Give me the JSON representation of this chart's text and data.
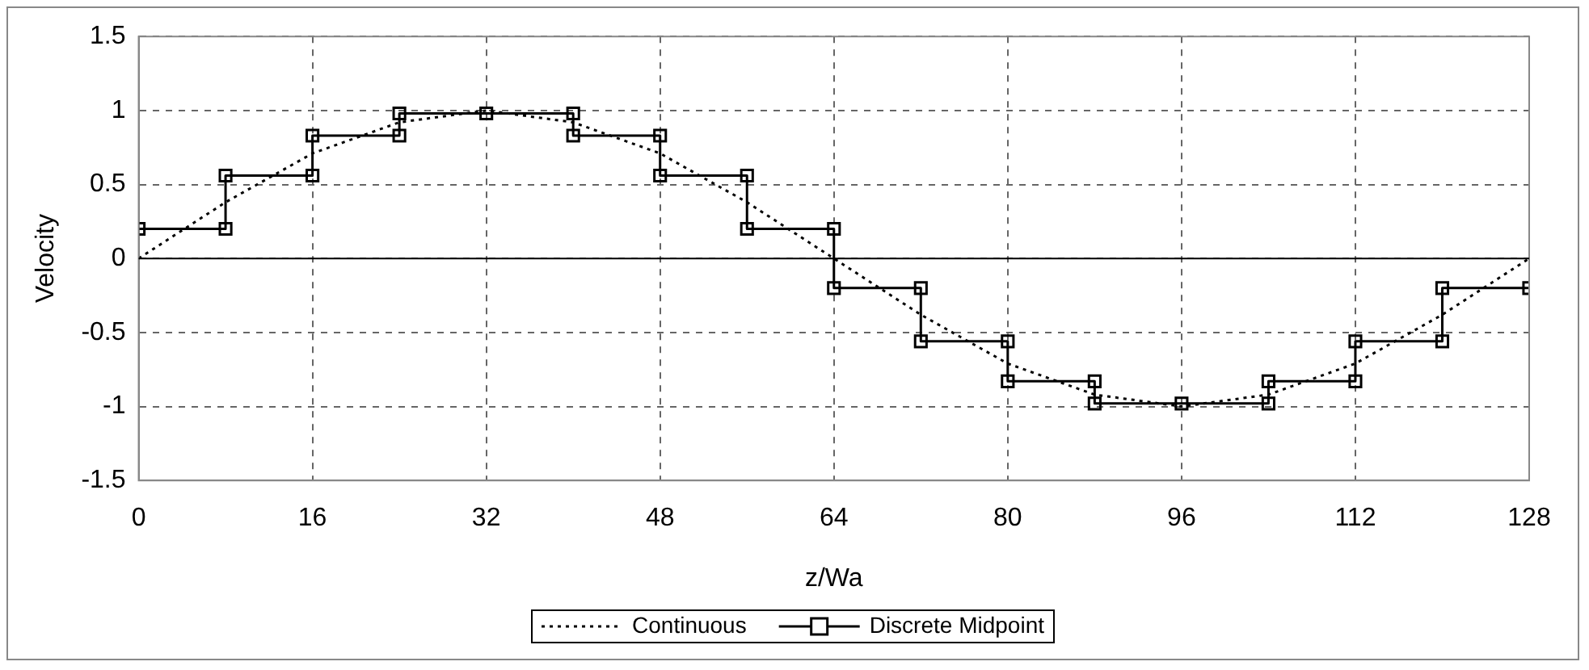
{
  "chart_data": {
    "type": "line",
    "xlabel": "z/Wa",
    "ylabel": "Velocity",
    "xlim": [
      0,
      128
    ],
    "xticks": [
      0,
      16,
      32,
      48,
      64,
      80,
      96,
      112,
      128
    ],
    "ylim": [
      -1.5,
      1.5
    ],
    "yticks": [
      -1.5,
      -1,
      -0.5,
      0,
      0.5,
      1,
      1.5
    ],
    "grid": true,
    "legend": "bottom",
    "ref_lines": [
      {
        "axis": "y",
        "value": 0,
        "color": "#000000",
        "line_style": "solid"
      }
    ],
    "series": [
      {
        "name": "Continuous",
        "color": "#000000",
        "marker": "none",
        "line_style": "dotted",
        "x": [
          0,
          8,
          16,
          24,
          32,
          40,
          48,
          56,
          64,
          72,
          80,
          88,
          96,
          104,
          112,
          120,
          128
        ],
        "values": [
          0,
          0.38,
          0.71,
          0.92,
          1,
          0.92,
          0.71,
          0.38,
          0,
          -0.38,
          -0.71,
          -0.92,
          -1,
          -0.92,
          -0.71,
          -0.38,
          0
        ]
      },
      {
        "name": "Discrete Midpoint",
        "color": "#000000",
        "marker": "square",
        "line_style": "solid",
        "x": [
          0,
          8,
          8,
          16,
          16,
          24,
          24,
          32,
          40,
          40,
          48,
          48,
          56,
          56,
          64,
          64,
          72,
          72,
          80,
          80,
          88,
          88,
          96,
          104,
          104,
          112,
          112,
          120,
          120,
          128
        ],
        "values": [
          0.2,
          0.2,
          0.56,
          0.56,
          0.83,
          0.83,
          0.98,
          0.98,
          0.98,
          0.83,
          0.83,
          0.56,
          0.56,
          0.2,
          0.2,
          -0.2,
          -0.2,
          -0.56,
          -0.56,
          -0.83,
          -0.83,
          -0.98,
          -0.98,
          -0.98,
          -0.83,
          -0.83,
          -0.56,
          -0.56,
          -0.2,
          -0.2
        ]
      }
    ]
  }
}
